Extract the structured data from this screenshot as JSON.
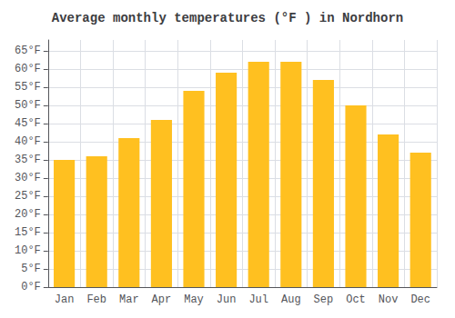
{
  "chart_data": {
    "type": "bar",
    "title": "Average monthly temperatures (°F ) in Nordhorn",
    "categories": [
      "Jan",
      "Feb",
      "Mar",
      "Apr",
      "May",
      "Jun",
      "Jul",
      "Aug",
      "Sep",
      "Oct",
      "Nov",
      "Dec"
    ],
    "values": [
      35,
      36,
      41,
      46,
      54,
      59,
      62,
      62,
      57,
      50,
      42,
      37
    ],
    "color": "#FFC020",
    "ylim": [
      0,
      68
    ],
    "yticks": [
      {
        "value": 0,
        "label": "0°F"
      },
      {
        "value": 5,
        "label": "5°F"
      },
      {
        "value": 10,
        "label": "10°F"
      },
      {
        "value": 15,
        "label": "15°F"
      },
      {
        "value": 20,
        "label": "20°F"
      },
      {
        "value": 25,
        "label": "25°F"
      },
      {
        "value": 30,
        "label": "30°F"
      },
      {
        "value": 35,
        "label": "35°F"
      },
      {
        "value": 40,
        "label": "40°F"
      },
      {
        "value": 45,
        "label": "45°F"
      },
      {
        "value": 50,
        "label": "50°F"
      },
      {
        "value": 55,
        "label": "55°F"
      },
      {
        "value": 60,
        "label": "60°F"
      },
      {
        "value": 65,
        "label": "65°F"
      }
    ],
    "grid": true
  }
}
